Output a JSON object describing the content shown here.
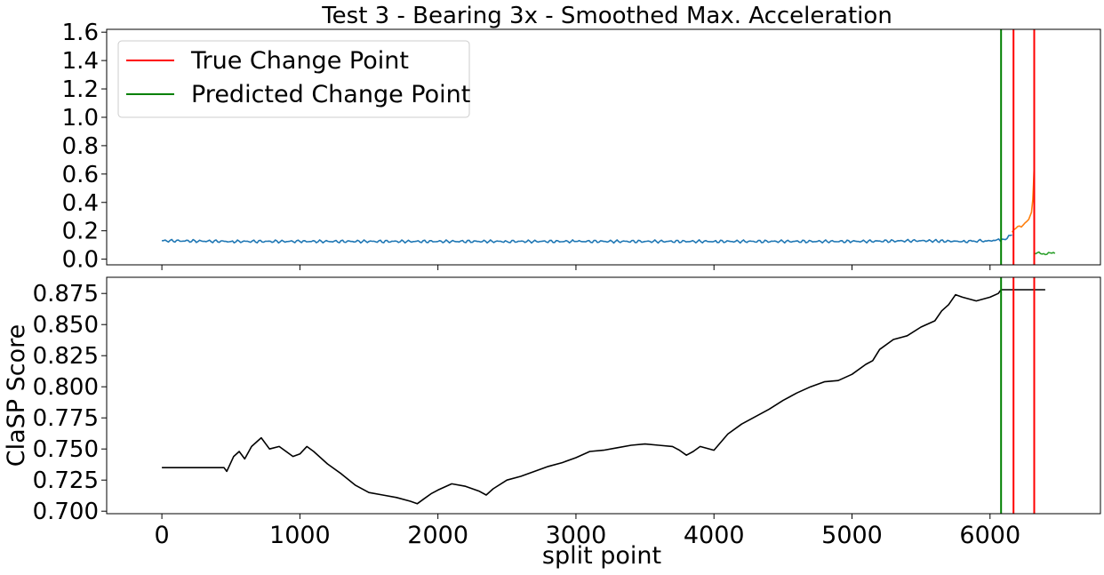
{
  "chart_data": [
    {
      "type": "line",
      "title": "Test 3 - Bearing 3x - Smoothed Max. Acceleration",
      "xlabel": "",
      "ylabel": "",
      "xlim": [
        -400,
        6800
      ],
      "ylim": [
        -0.04,
        1.62
      ],
      "yticks": [
        "0.0",
        "0.2",
        "0.4",
        "0.6",
        "0.8",
        "1.0",
        "1.2",
        "1.4",
        "1.6"
      ],
      "ytick_values": [
        0.0,
        0.2,
        0.4,
        0.6,
        0.8,
        1.0,
        1.2,
        1.4,
        1.6
      ],
      "grid": false,
      "legend_position": "top-left",
      "legend": [
        {
          "label": "True Change Point",
          "color": "#ff0000"
        },
        {
          "label": "Predicted Change Point",
          "color": "#008000"
        }
      ],
      "series": [
        {
          "color": "#1f77b4",
          "x": [
            0,
            500,
            1000,
            1500,
            2000,
            2500,
            3000,
            3500,
            4000,
            4500,
            5000,
            5500,
            5800,
            6000,
            6100,
            6160
          ],
          "values": [
            0.13,
            0.125,
            0.125,
            0.125,
            0.125,
            0.125,
            0.125,
            0.125,
            0.125,
            0.125,
            0.125,
            0.13,
            0.125,
            0.13,
            0.14,
            0.17
          ]
        },
        {
          "color": "#ff7f0e",
          "x": [
            6160,
            6200,
            6240,
            6280,
            6300,
            6310,
            6315,
            6320
          ],
          "values": [
            0.19,
            0.23,
            0.24,
            0.28,
            0.33,
            0.42,
            0.53,
            0.66
          ]
        },
        {
          "color": "#2ca02c",
          "x": [
            6320,
            6470
          ],
          "values": [
            0.04,
            0.04
          ]
        }
      ],
      "vlines": [
        {
          "x": 6080,
          "color": "#008000"
        },
        {
          "x": 6170,
          "color": "#ff0000"
        },
        {
          "x": 6320,
          "color": "#ff0000"
        }
      ]
    },
    {
      "type": "line",
      "title": "",
      "xlabel": "split point",
      "ylabel": "ClaSP Score",
      "xlim": [
        -400,
        6800
      ],
      "ylim": [
        0.698,
        0.888
      ],
      "xticks": [
        "0",
        "1000",
        "2000",
        "3000",
        "4000",
        "5000",
        "6000"
      ],
      "xtick_values": [
        0,
        1000,
        2000,
        3000,
        4000,
        5000,
        6000
      ],
      "yticks": [
        "0.700",
        "0.725",
        "0.750",
        "0.775",
        "0.800",
        "0.825",
        "0.850",
        "0.875"
      ],
      "ytick_values": [
        0.7,
        0.725,
        0.75,
        0.775,
        0.8,
        0.825,
        0.85,
        0.875
      ],
      "grid": false,
      "series": [
        {
          "color": "#000000",
          "x": [
            0,
            450,
            470,
            520,
            560,
            600,
            650,
            700,
            720,
            780,
            850,
            950,
            1000,
            1050,
            1100,
            1200,
            1300,
            1400,
            1500,
            1600,
            1700,
            1800,
            1850,
            1900,
            1950,
            2000,
            2100,
            2200,
            2300,
            2350,
            2400,
            2500,
            2600,
            2700,
            2800,
            2900,
            3000,
            3100,
            3200,
            3300,
            3400,
            3500,
            3600,
            3700,
            3750,
            3800,
            3850,
            3900,
            4000,
            4100,
            4200,
            4300,
            4400,
            4500,
            4600,
            4700,
            4800,
            4900,
            5000,
            5100,
            5150,
            5200,
            5300,
            5400,
            5500,
            5600,
            5650,
            5700,
            5750,
            5800,
            5900,
            6000,
            6060,
            6080,
            6400
          ],
          "values": [
            0.735,
            0.735,
            0.732,
            0.744,
            0.748,
            0.742,
            0.752,
            0.757,
            0.759,
            0.75,
            0.752,
            0.744,
            0.746,
            0.752,
            0.748,
            0.738,
            0.73,
            0.721,
            0.715,
            0.713,
            0.711,
            0.708,
            0.706,
            0.71,
            0.714,
            0.717,
            0.722,
            0.72,
            0.716,
            0.713,
            0.718,
            0.725,
            0.728,
            0.732,
            0.736,
            0.739,
            0.743,
            0.748,
            0.749,
            0.751,
            0.753,
            0.754,
            0.753,
            0.752,
            0.749,
            0.745,
            0.748,
            0.752,
            0.749,
            0.762,
            0.77,
            0.776,
            0.782,
            0.789,
            0.795,
            0.8,
            0.804,
            0.805,
            0.81,
            0.818,
            0.821,
            0.83,
            0.838,
            0.841,
            0.848,
            0.853,
            0.861,
            0.866,
            0.874,
            0.872,
            0.869,
            0.872,
            0.875,
            0.878,
            0.878
          ]
        }
      ],
      "vlines": [
        {
          "x": 6080,
          "color": "#008000"
        },
        {
          "x": 6170,
          "color": "#ff0000"
        },
        {
          "x": 6320,
          "color": "#ff0000"
        }
      ]
    }
  ]
}
